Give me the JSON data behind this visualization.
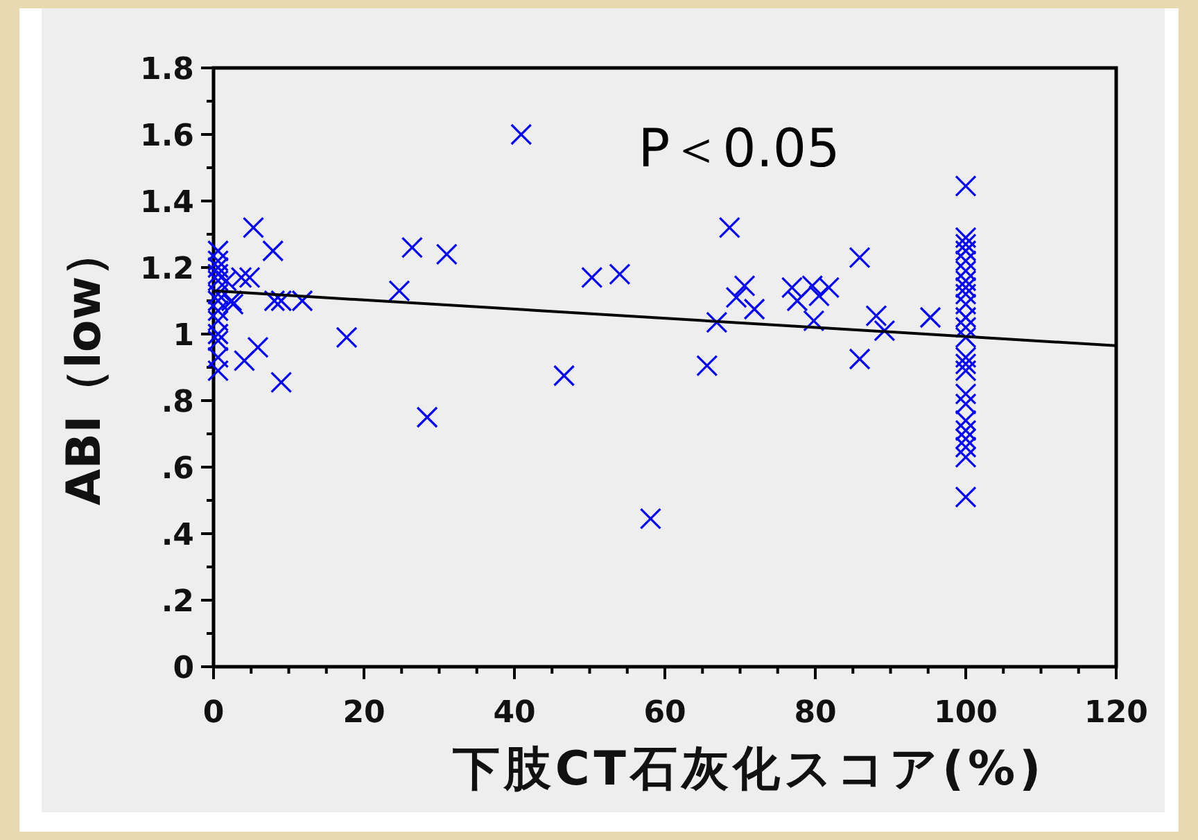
{
  "chart_data": {
    "type": "scatter",
    "xlabel": "下肢CT石灰化スコア(%)",
    "ylabel": "ABI（low）",
    "annotations": [
      "P＜0.05"
    ],
    "xlim": [
      0,
      120
    ],
    "ylim": [
      0,
      1.8
    ],
    "xticks": [
      0,
      {
        "value": 5,
        "label": null
      },
      {
        "value": 10,
        "label": null
      },
      {
        "value": 15,
        "label": null
      },
      20,
      {
        "value": 25,
        "label": null
      },
      {
        "value": 30,
        "label": null
      },
      {
        "value": 35,
        "label": null
      },
      40,
      {
        "value": 45,
        "label": null
      },
      {
        "value": 50,
        "label": null
      },
      {
        "value": 55,
        "label": null
      },
      60,
      {
        "value": 65,
        "label": null
      },
      {
        "value": 70,
        "label": null
      },
      {
        "value": 75,
        "label": null
      },
      80,
      {
        "value": 85,
        "label": null
      },
      {
        "value": 90,
        "label": null
      },
      {
        "value": 95,
        "label": null
      },
      100,
      {
        "value": 105,
        "label": null
      },
      {
        "value": 110,
        "label": null
      },
      {
        "value": 115,
        "label": null
      },
      120
    ],
    "yticks": [
      0,
      {
        "value": 0.1,
        "label": null
      },
      {
        "value": 0.2,
        "label": ".2"
      },
      {
        "value": 0.3,
        "label": null
      },
      {
        "value": 0.4,
        "label": ".4"
      },
      {
        "value": 0.5,
        "label": null
      },
      {
        "value": 0.6,
        "label": ".6"
      },
      {
        "value": 0.7,
        "label": null
      },
      {
        "value": 0.8,
        "label": ".8"
      },
      {
        "value": 0.9,
        "label": null
      },
      1,
      {
        "value": 1.1,
        "label": null
      },
      1.2,
      {
        "value": 1.3,
        "label": null
      },
      1.4,
      {
        "value": 1.5,
        "label": null
      },
      1.6,
      {
        "value": 1.7,
        "label": null
      },
      1.8
    ],
    "grid": false,
    "series": [
      {
        "marker": "cross",
        "color": "#0000ff",
        "x": [
          0.6,
          0.6,
          0.6,
          0.6,
          0.6,
          0.6,
          0.6,
          0.6,
          0.6,
          0.6,
          0.6,
          0.6,
          0.6,
          2.4,
          2.6,
          1.7,
          40.9,
          5.3,
          7.9,
          3.7,
          4.8,
          8.1,
          9,
          11.8,
          17.7,
          4.1,
          5.9,
          9,
          24.7,
          26.4,
          31,
          28.4,
          46.6,
          50.3,
          54,
          58.1,
          68.6,
          65.6,
          66.9,
          69.5,
          70.6,
          71.9,
          76.9,
          77.6,
          79.6,
          80.5,
          81.8,
          79.8,
          85.9,
          85.9,
          88.1,
          89.2,
          95.3,
          100,
          100,
          100,
          100,
          100,
          100,
          100,
          100,
          100,
          100,
          100,
          100,
          100,
          100,
          100,
          100,
          100,
          100,
          100,
          100,
          100,
          100,
          100,
          100
        ],
        "values": [
          1.25,
          1.22,
          1.2,
          1.18,
          1.16,
          1.12,
          1.1,
          1.07,
          1.04,
          1.0,
          0.98,
          0.93,
          0.89,
          1.1,
          1.09,
          1.16,
          1.6,
          1.32,
          1.25,
          1.17,
          1.17,
          1.1,
          1.1,
          1.1,
          0.99,
          0.92,
          0.96,
          0.855,
          1.13,
          1.26,
          1.24,
          0.75,
          0.875,
          1.17,
          1.18,
          0.445,
          1.32,
          0.905,
          1.035,
          1.11,
          1.145,
          1.075,
          1.14,
          1.1,
          1.145,
          1.115,
          1.14,
          1.04,
          1.23,
          0.925,
          1.055,
          1.01,
          1.05,
          1.445,
          1.29,
          1.27,
          1.25,
          1.22,
          1.19,
          1.16,
          1.14,
          1.12,
          1.09,
          1.05,
          1.02,
          0.99,
          0.93,
          0.91,
          0.89,
          0.82,
          0.79,
          0.74,
          0.71,
          0.685,
          0.66,
          0.63,
          0.51
        ]
      },
      {
        "type": "line",
        "line_style": "solid",
        "color": "#000000",
        "x": [
          0,
          120
        ],
        "values": [
          1.13,
          0.965
        ]
      }
    ]
  }
}
